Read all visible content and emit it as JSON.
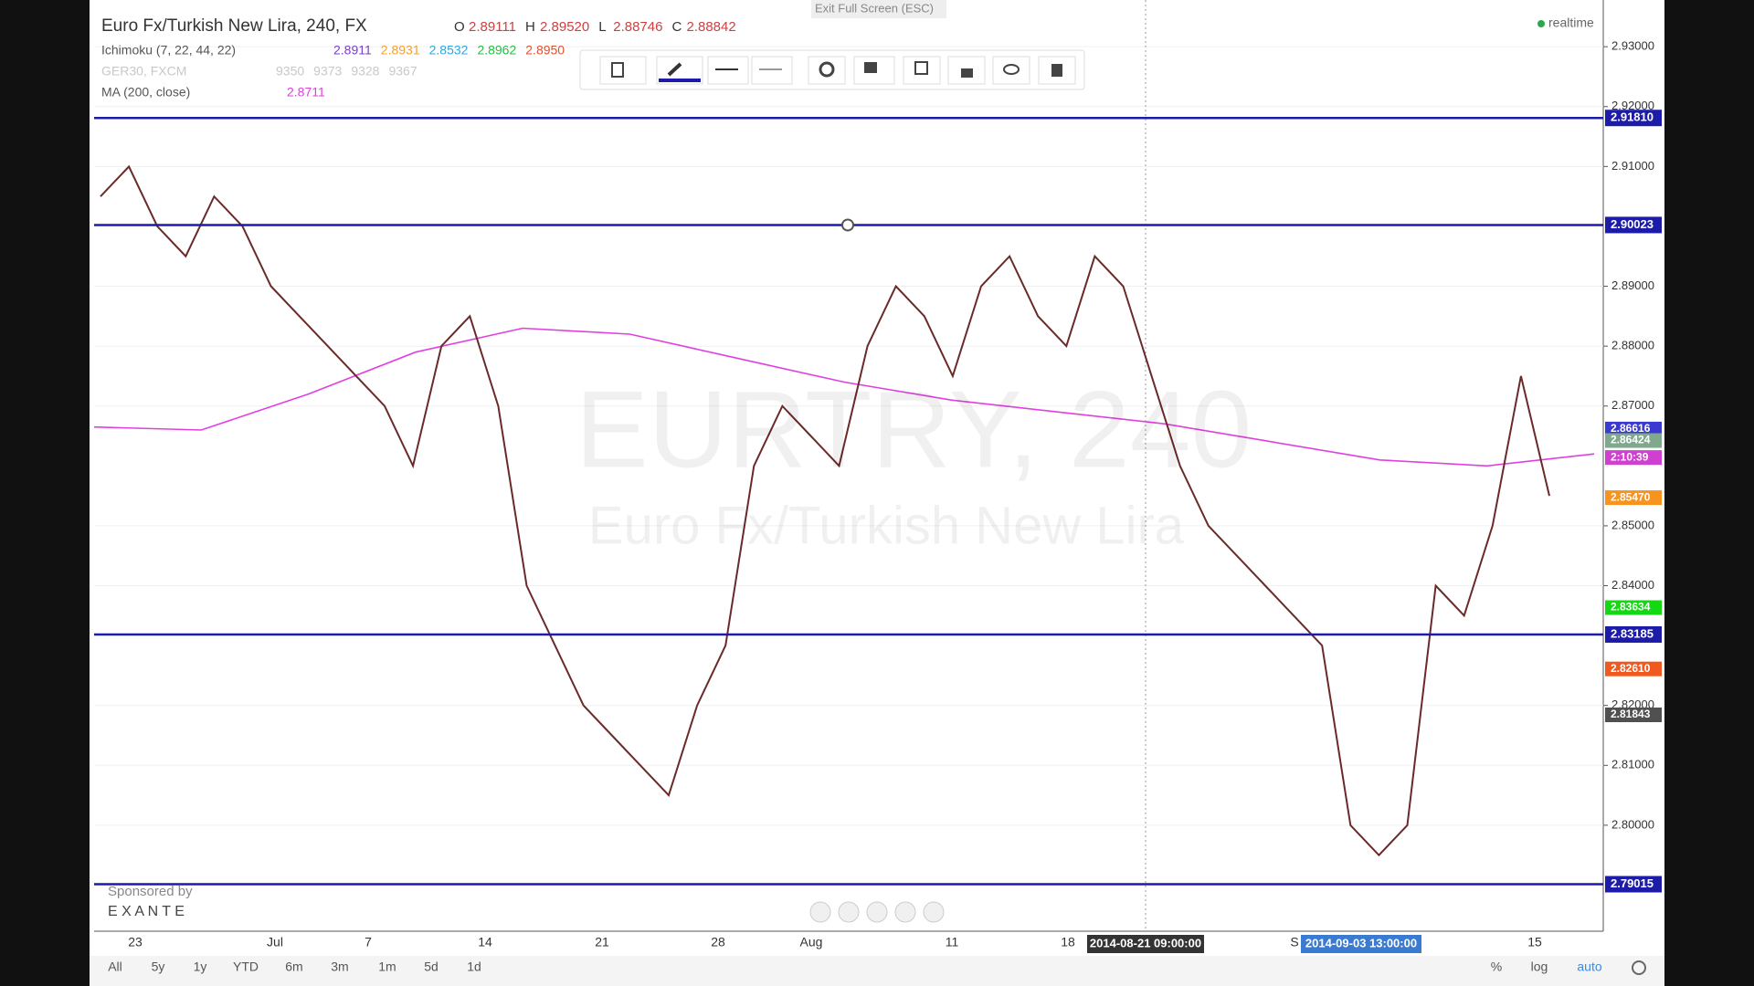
{
  "header": {
    "symbol": "Euro Fx/Turkish New Lira, 240, FX",
    "ohlc": [
      [
        "O",
        "2.89111"
      ],
      [
        "H",
        "2.89520"
      ],
      [
        "L",
        "2.88746"
      ],
      [
        "C",
        "2.88842"
      ]
    ],
    "exit_fullscreen": "Exit Full Screen (ESC)",
    "realtime": "realtime"
  },
  "indicators": [
    {
      "name": "Ichimoku (7, 22, 44, 22)",
      "values": [
        [
          "2.8911",
          "#7a3cc8"
        ],
        [
          "2.8931",
          "#f0a030"
        ],
        [
          "2.8532",
          "#2aa8e0"
        ],
        [
          "2.8962",
          "#20c040"
        ],
        [
          "2.8950",
          "#e05030"
        ]
      ]
    },
    {
      "name": "GER30, FXCM",
      "values": [
        [
          "9350",
          "#c8c8c8"
        ],
        [
          "9373",
          "#c8c8c8"
        ],
        [
          "9328",
          "#c8c8c8"
        ],
        [
          "9367",
          "#c8c8c8"
        ]
      ]
    },
    {
      "name": "MA (200, close)",
      "values": [
        [
          "2.8711",
          "#e040e0"
        ]
      ]
    }
  ],
  "watermark": {
    "line1": "EURTRY, 240",
    "line2": "Euro Fx/Turkish New Lira"
  },
  "price_axis": {
    "ylim": [
      2.7823,
      2.9378
    ],
    "yticks": [
      {
        "value": 2.93,
        "label": "2.93000"
      },
      {
        "value": 2.92,
        "label": "2.92000"
      },
      {
        "value": 2.91,
        "label": "2.91000"
      },
      {
        "value": 2.89,
        "label": "2.89000"
      },
      {
        "value": 2.88,
        "label": "2.88000"
      },
      {
        "value": 2.87,
        "label": "2.87000"
      },
      {
        "value": 2.85,
        "label": "2.85000"
      },
      {
        "value": 2.84,
        "label": "2.84000"
      },
      {
        "value": 2.82,
        "label": "2.82000"
      },
      {
        "value": 2.81,
        "label": "2.81000"
      },
      {
        "value": 2.8,
        "label": "2.80000"
      }
    ]
  },
  "horizontal_lines": [
    {
      "value": 2.9181,
      "label": "2.91810"
    },
    {
      "value": 2.90023,
      "label": "2.90023"
    },
    {
      "value": 2.83185,
      "label": "2.83185"
    },
    {
      "value": 2.79015,
      "label": "2.79015"
    }
  ],
  "price_badges": [
    {
      "value": 2.86616,
      "label": "2.86616",
      "color": "#3a3ad0"
    },
    {
      "value": 2.86424,
      "label": "2.86424",
      "color": "#7fa88c"
    },
    {
      "value": 2.8614,
      "label": "2:10:39",
      "color": "#d040d0"
    },
    {
      "value": 2.8547,
      "label": "2.85470",
      "color": "#f7931e"
    },
    {
      "value": 2.83634,
      "label": "2.83634",
      "color": "#14d814"
    },
    {
      "value": 2.8261,
      "label": "2.82610",
      "color": "#f05a1e"
    },
    {
      "value": 2.81843,
      "label": "2.81843",
      "color": "#505050"
    }
  ],
  "price_series": {
    "color": "#6b2a2a",
    "values": [
      2.905,
      2.91,
      2.9,
      2.895,
      2.905,
      2.9,
      2.89,
      2.885,
      2.88,
      2.875,
      2.87,
      2.86,
      2.88,
      2.885,
      2.87,
      2.84,
      2.83,
      2.82,
      2.815,
      2.81,
      2.805,
      2.82,
      2.83,
      2.86,
      2.87,
      2.865,
      2.86,
      2.88,
      2.89,
      2.885,
      2.875,
      2.89,
      2.895,
      2.885,
      2.88,
      2.895,
      2.89,
      2.875,
      2.86,
      2.85,
      2.845,
      2.84,
      2.835,
      2.83,
      2.8,
      2.795,
      2.8,
      2.84,
      2.835,
      2.85,
      2.875,
      2.855
    ]
  },
  "ma_series": {
    "color": "#e040e0",
    "values": [
      2.8665,
      2.866,
      2.872,
      2.879,
      2.883,
      2.882,
      2.878,
      2.874,
      2.871,
      2.869,
      2.867,
      2.864,
      2.861,
      2.86,
      2.862
    ]
  },
  "time_axis": {
    "labels": [
      "23",
      "Jul",
      "7",
      "14",
      "21",
      "28",
      "Aug",
      "11",
      "18",
      "S",
      "15"
    ],
    "crosshair_labels": [
      "2014-08-21 09:00:00",
      "2014-09-03 13:00:00"
    ]
  },
  "sponsor": {
    "text": "Sponsored by",
    "brand": "E X A N T E"
  },
  "range_buttons": [
    "All",
    "5y",
    "1y",
    "YTD",
    "6m",
    "3m",
    "1m",
    "5d",
    "1d"
  ],
  "scale_buttons": [
    "%",
    "log",
    "auto"
  ]
}
